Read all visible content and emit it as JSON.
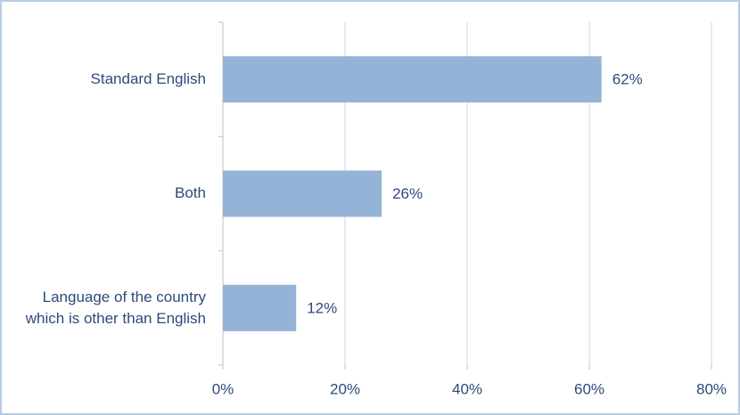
{
  "chart_data": {
    "type": "bar",
    "orientation": "horizontal",
    "categories": [
      "Standard English",
      "Both",
      "Language of the country which is other than English"
    ],
    "values": [
      62,
      26,
      12
    ],
    "value_labels": [
      "62%",
      "26%",
      "12%"
    ],
    "color": "#95b3d7",
    "xlim": [
      0,
      80
    ],
    "xticks": [
      {
        "value": 0,
        "label": "0%"
      },
      {
        "value": 20,
        "label": "20%"
      },
      {
        "value": 40,
        "label": "40%"
      },
      {
        "value": 60,
        "label": "60%"
      },
      {
        "value": 80,
        "label": "80%"
      }
    ],
    "grid": true
  }
}
